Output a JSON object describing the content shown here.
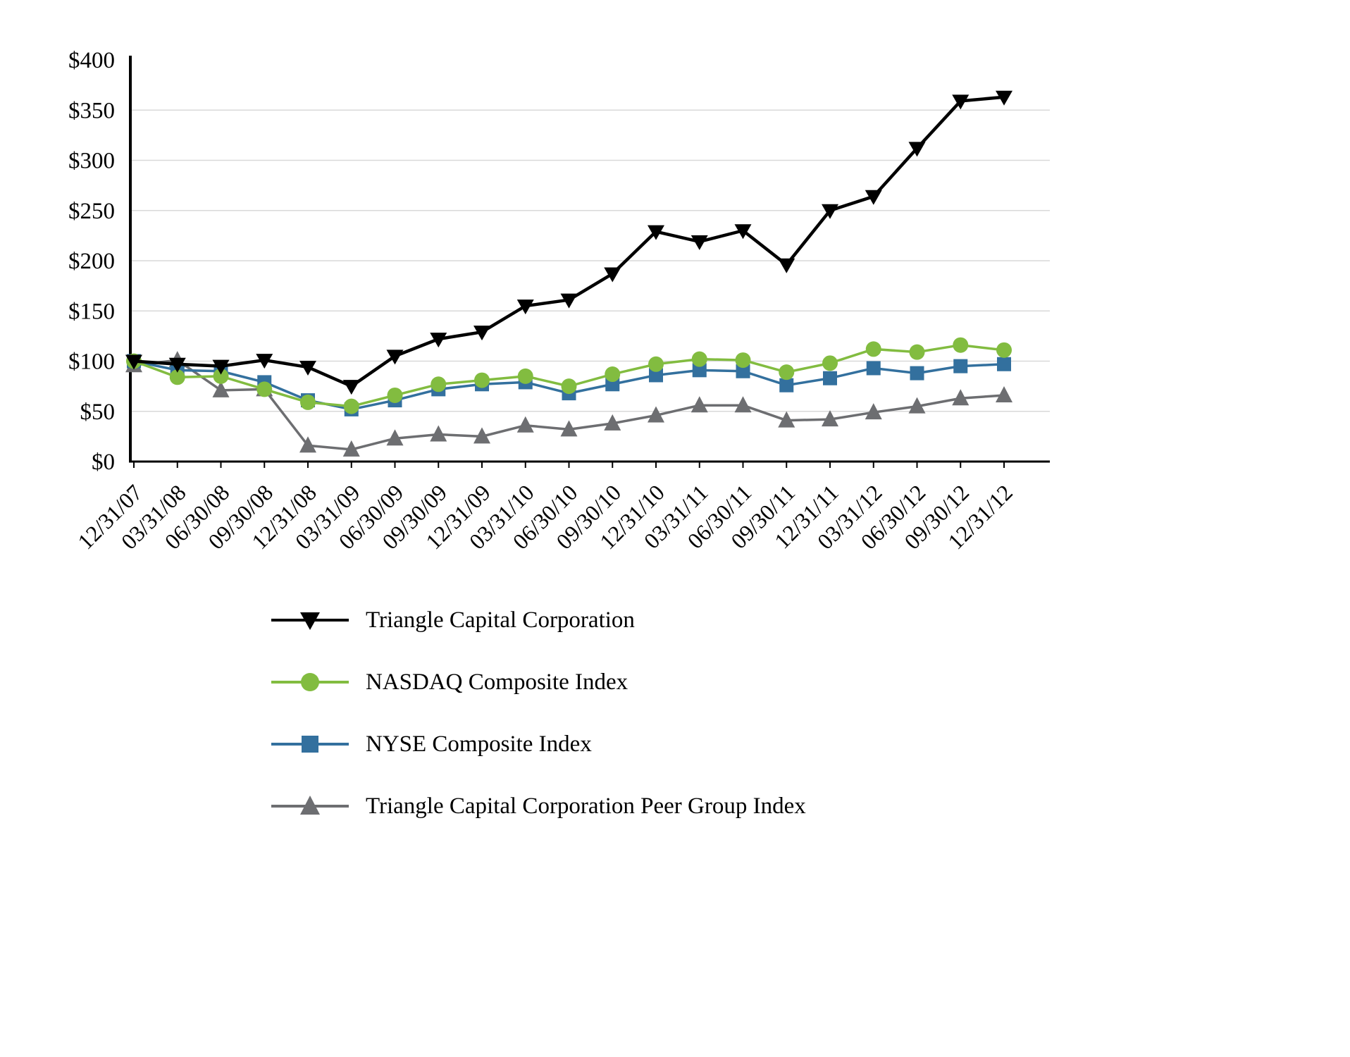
{
  "chart_data": {
    "type": "line",
    "title": "",
    "xlabel": "",
    "ylabel": "",
    "ylim": [
      0,
      400
    ],
    "ytick_step": 50,
    "yticks": [
      "$0",
      "$50",
      "$100",
      "$150",
      "$200",
      "$250",
      "$300",
      "$350",
      "$400"
    ],
    "grid": true,
    "gridline_color": "#d9d9d9",
    "axis_color": "#000000",
    "legend_position": "bottom",
    "x": [
      "12/31/07",
      "03/31/08",
      "06/30/08",
      "09/30/08",
      "12/31/08",
      "03/31/09",
      "06/30/09",
      "09/30/09",
      "12/31/09",
      "03/31/10",
      "06/30/10",
      "09/30/10",
      "12/31/10",
      "03/31/11",
      "06/30/11",
      "09/30/11",
      "12/31/11",
      "03/31/12",
      "06/30/12",
      "09/30/12",
      "12/31/12"
    ],
    "series": [
      {
        "name": "Triangle Capital Corporation",
        "color": "#000000",
        "marker": "triangle-down",
        "values": [
          100,
          97,
          95,
          101,
          94,
          75,
          105,
          122,
          129,
          155,
          161,
          187,
          229,
          219,
          230,
          196,
          250,
          264,
          312,
          359,
          363
        ]
      },
      {
        "name": "NASDAQ Composite Index",
        "color": "#82bc40",
        "marker": "circle",
        "values": [
          100,
          84,
          85,
          72,
          59,
          55,
          66,
          77,
          81,
          85,
          75,
          87,
          97,
          102,
          101,
          89,
          98,
          112,
          109,
          116,
          111
        ]
      },
      {
        "name": "NYSE Composite Index",
        "color": "#33709e",
        "marker": "square",
        "values": [
          100,
          91,
          90,
          79,
          61,
          52,
          61,
          72,
          77,
          79,
          68,
          77,
          86,
          91,
          90,
          76,
          83,
          93,
          88,
          95,
          97
        ]
      },
      {
        "name": "Triangle Capital Corporation Peer Group Index",
        "color": "#6d6e71",
        "marker": "triangle-up",
        "values": [
          96,
          101,
          71,
          72,
          16,
          12,
          23,
          27,
          25,
          36,
          32,
          38,
          46,
          56,
          56,
          41,
          42,
          49,
          55,
          63,
          66
        ]
      }
    ]
  }
}
